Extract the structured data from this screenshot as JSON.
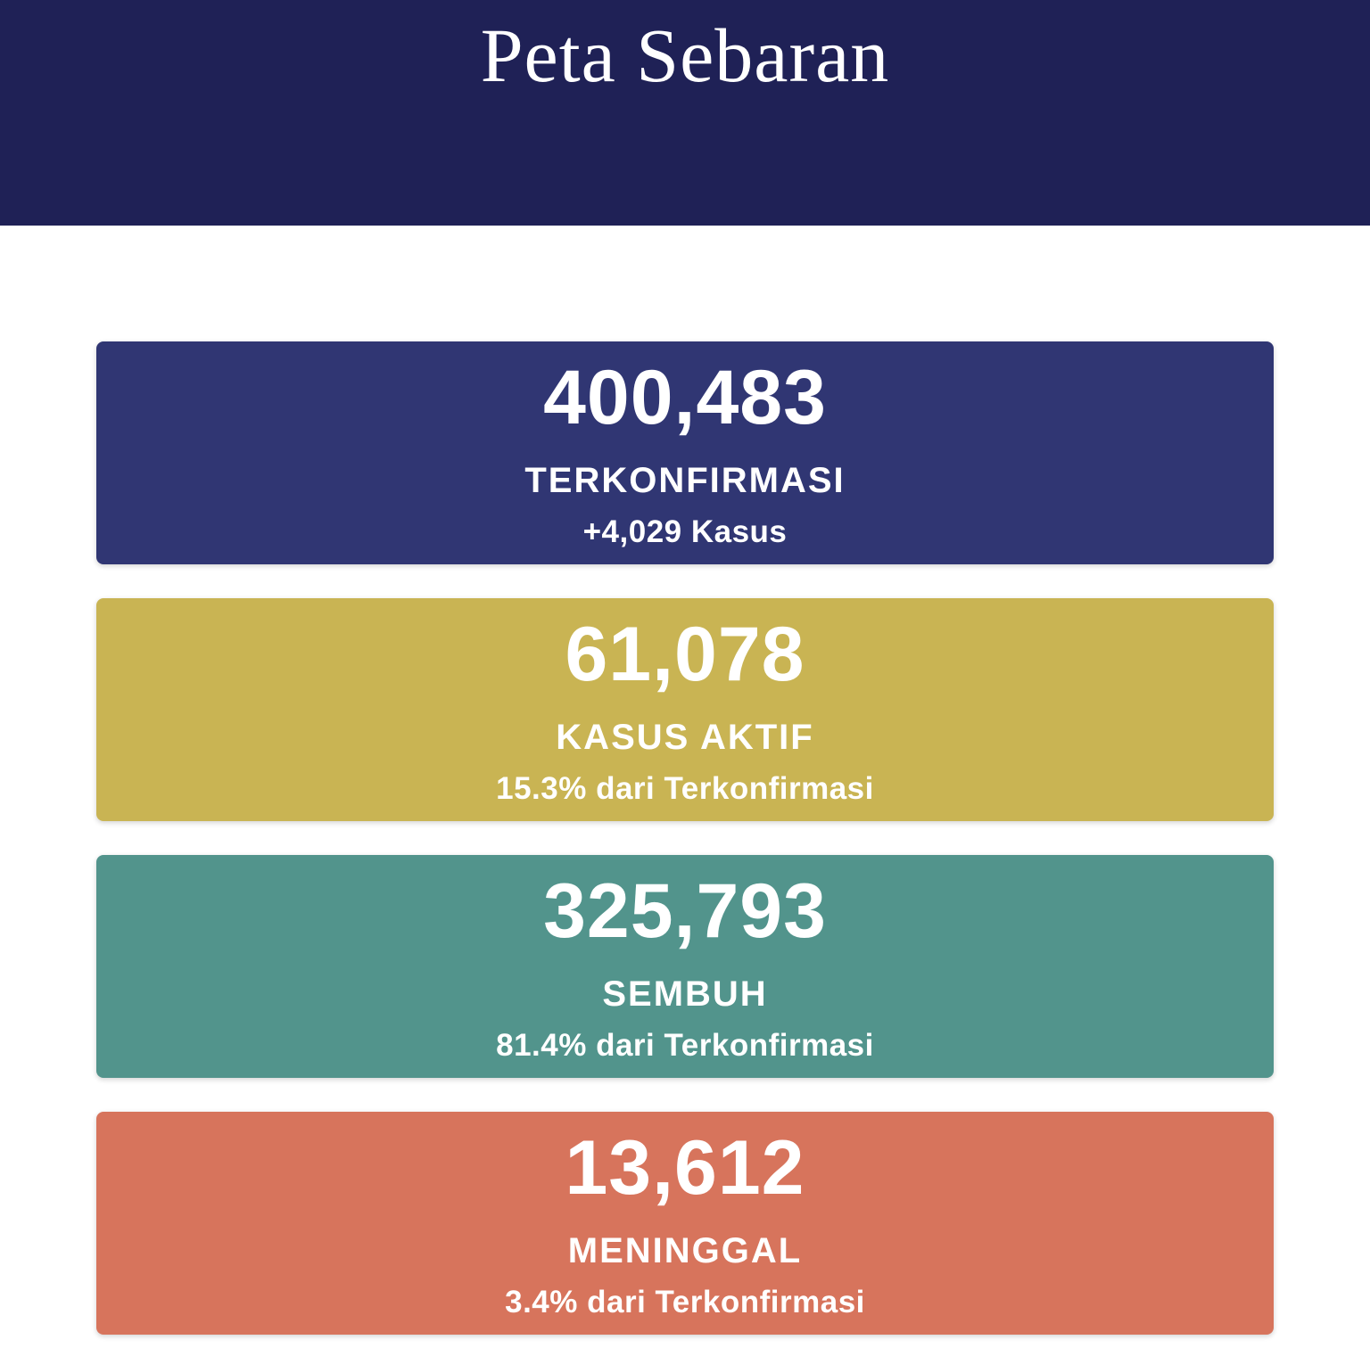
{
  "header": {
    "title": "Peta Sebaran",
    "bg_color": "#1F2156",
    "text_color": "#FFFFFF"
  },
  "stats": {
    "cards": [
      {
        "name": "terkonfirmasi",
        "value": "400,483",
        "label": "TERKONFIRMASI",
        "subtext": "+4,029 Kasus",
        "bg_color": "#303673"
      },
      {
        "name": "kasus-aktif",
        "value": "61,078",
        "label": "KASUS AKTIF",
        "subtext": "15.3% dari Terkonfirmasi",
        "bg_color": "#C9B453"
      },
      {
        "name": "sembuh",
        "value": "325,793",
        "label": "SEMBUH",
        "subtext": "81.4% dari Terkonfirmasi",
        "bg_color": "#52948C"
      },
      {
        "name": "meninggal",
        "value": "13,612",
        "label": "MENINGGAL",
        "subtext": "3.4% dari Terkonfirmasi",
        "bg_color": "#D7745C"
      }
    ]
  }
}
